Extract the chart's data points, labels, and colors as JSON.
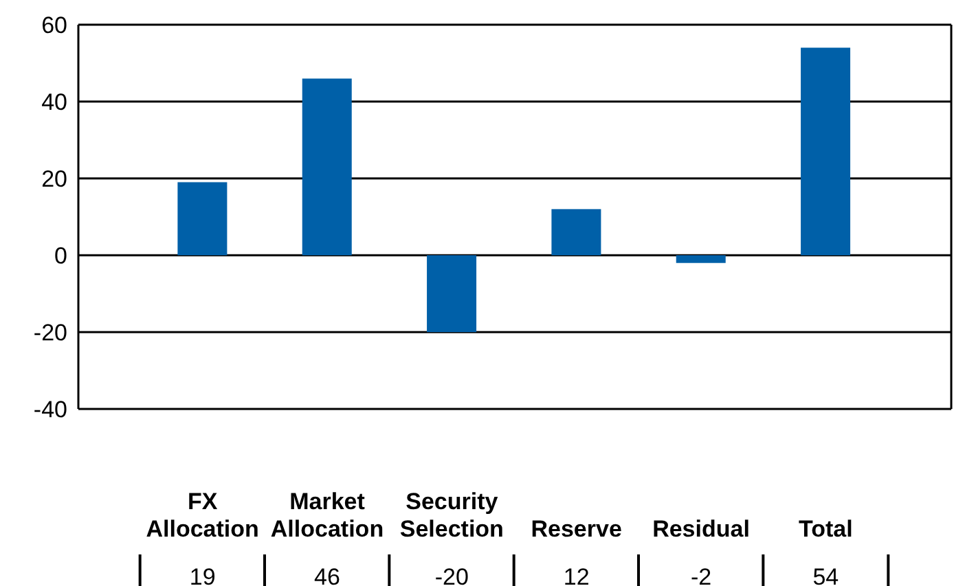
{
  "chart_data": {
    "type": "bar",
    "categories": [
      "FX Allocation",
      "Market Allocation",
      "Security Selection",
      "Reserve",
      "Residual",
      "Total"
    ],
    "values": [
      19,
      46,
      -20,
      12,
      -2,
      54
    ],
    "color": "#0060a8",
    "ylim": [
      -40,
      60
    ],
    "yticks": [
      -40,
      -20,
      0,
      20,
      40,
      60
    ],
    "grid": "y",
    "data_labels": true
  }
}
